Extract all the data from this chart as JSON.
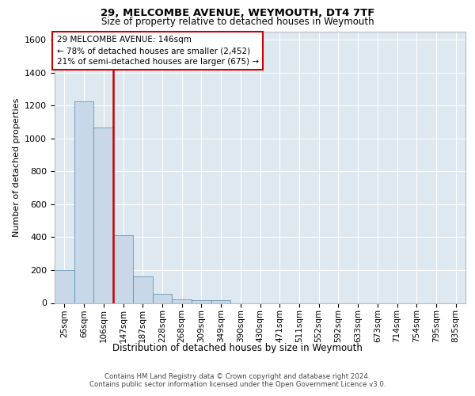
{
  "title1": "29, MELCOMBE AVENUE, WEYMOUTH, DT4 7TF",
  "title2": "Size of property relative to detached houses in Weymouth",
  "xlabel": "Distribution of detached houses by size in Weymouth",
  "ylabel": "Number of detached properties",
  "categories": [
    "25sqm",
    "66sqm",
    "106sqm",
    "147sqm",
    "187sqm",
    "228sqm",
    "268sqm",
    "309sqm",
    "349sqm",
    "390sqm",
    "430sqm",
    "471sqm",
    "511sqm",
    "552sqm",
    "592sqm",
    "633sqm",
    "673sqm",
    "714sqm",
    "754sqm",
    "795sqm",
    "835sqm"
  ],
  "values": [
    200,
    1225,
    1065,
    410,
    160,
    55,
    20,
    15,
    15,
    0,
    0,
    0,
    0,
    0,
    0,
    0,
    0,
    0,
    0,
    0,
    0
  ],
  "bar_color": "#c8d8e8",
  "bar_edge_color": "#5588aa",
  "red_line_x": 2.5,
  "property_size": "146sqm",
  "property_name": "29 MELCOMBE AVENUE",
  "pct_smaller": 78,
  "n_smaller": 2452,
  "pct_larger": 21,
  "n_larger": 675,
  "annotation_box_color": "#ffffff",
  "annotation_box_edge": "#cc0000",
  "red_line_color": "#cc0000",
  "ylim": [
    0,
    1650
  ],
  "yticks": [
    0,
    200,
    400,
    600,
    800,
    1000,
    1200,
    1400,
    1600
  ],
  "background_color": "#dde8f0",
  "grid_color": "#ffffff",
  "fig_background": "#ffffff",
  "footer1": "Contains HM Land Registry data © Crown copyright and database right 2024.",
  "footer2": "Contains public sector information licensed under the Open Government Licence v3.0."
}
